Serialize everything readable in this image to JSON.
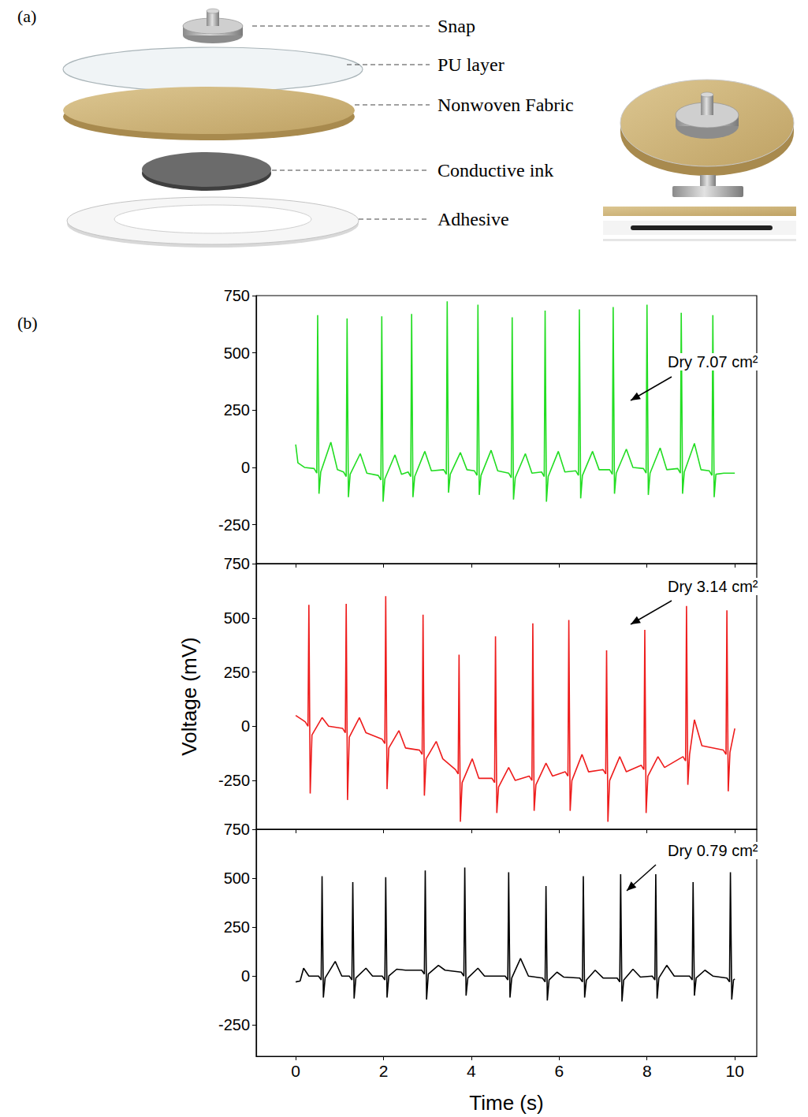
{
  "panels": {
    "a": {
      "label": "(a)",
      "layers": [
        "Snap",
        "PU layer",
        "Nonwoven Fabric",
        "Conductive ink",
        "Adhesive"
      ]
    },
    "b": {
      "label": "(b)"
    }
  },
  "chart_data": [
    {
      "type": "line",
      "annotation": "Dry 7.07 cm²",
      "color": "#22dd22",
      "grid": false,
      "tick_labels": "y",
      "xlim": [
        -0.9,
        10.5
      ],
      "xticks": [
        0,
        2,
        4,
        6,
        8,
        10
      ],
      "ylim": [
        -420,
        750
      ],
      "yticks": [
        -250,
        0,
        250,
        500,
        750
      ],
      "x": [
        0,
        0.05,
        0.2,
        0.42,
        0.48,
        0.5,
        0.53,
        0.57,
        0.8,
        0.95,
        1.09,
        1.15,
        1.17,
        1.2,
        1.24,
        1.47,
        1.62,
        1.88,
        1.94,
        1.96,
        1.99,
        2.03,
        2.26,
        2.41,
        2.56,
        2.62,
        2.64,
        2.67,
        2.71,
        2.94,
        3.09,
        3.37,
        3.43,
        3.45,
        3.48,
        3.52,
        3.75,
        3.9,
        4.07,
        4.13,
        4.15,
        4.18,
        4.22,
        4.45,
        4.6,
        4.85,
        4.91,
        4.93,
        4.96,
        5.0,
        5.23,
        5.38,
        5.6,
        5.66,
        5.68,
        5.71,
        5.75,
        5.98,
        6.13,
        6.38,
        6.44,
        6.46,
        6.49,
        6.53,
        6.76,
        6.91,
        7.15,
        7.21,
        7.23,
        7.26,
        7.3,
        7.53,
        7.68,
        7.92,
        7.98,
        8.0,
        8.03,
        8.07,
        8.3,
        8.45,
        8.7,
        8.76,
        8.78,
        8.81,
        8.85,
        9.08,
        9.23,
        9.42,
        9.48,
        9.5,
        9.53,
        9.57,
        9.75,
        10
      ],
      "values": [
        100,
        20,
        0,
        -5,
        -25,
        665,
        -115,
        -20,
        110,
        -10,
        -20,
        -40,
        650,
        -130,
        -30,
        60,
        -25,
        -35,
        -55,
        660,
        -150,
        -50,
        55,
        -30,
        -20,
        -40,
        670,
        -130,
        -40,
        70,
        -15,
        -10,
        -30,
        725,
        -110,
        -30,
        65,
        -10,
        -15,
        -35,
        710,
        -120,
        -35,
        75,
        -15,
        -25,
        -45,
        655,
        -140,
        -45,
        60,
        -25,
        -20,
        -40,
        685,
        -150,
        -40,
        70,
        -20,
        -15,
        -35,
        690,
        -135,
        -35,
        70,
        -10,
        -10,
        -30,
        700,
        -115,
        -25,
        80,
        0,
        -5,
        -25,
        710,
        -120,
        -25,
        85,
        -10,
        -5,
        -25,
        675,
        -115,
        -20,
        105,
        -10,
        -15,
        -35,
        665,
        -130,
        -30,
        -25,
        -25
      ]
    },
    {
      "type": "line",
      "annotation": "Dry 3.14 cm²",
      "color": "#ee1c1c",
      "grid": false,
      "tick_labels": "y",
      "ylabel": "Voltage (mV)",
      "xlim": [
        -0.9,
        10.5
      ],
      "xticks": [
        0,
        2,
        4,
        6,
        8,
        10
      ],
      "ylim": [
        -475,
        750
      ],
      "yticks": [
        -250,
        0,
        250,
        500,
        750
      ],
      "x": [
        0,
        0.15,
        0.22,
        0.28,
        0.3,
        0.33,
        0.37,
        0.6,
        0.75,
        1.07,
        1.13,
        1.15,
        1.18,
        1.22,
        1.45,
        1.6,
        1.97,
        2.03,
        2.05,
        2.08,
        2.12,
        2.35,
        2.5,
        2.82,
        2.88,
        2.9,
        2.93,
        2.97,
        3.2,
        3.35,
        3.64,
        3.7,
        3.72,
        3.75,
        3.79,
        4.02,
        4.17,
        4.47,
        4.53,
        4.55,
        4.58,
        4.62,
        4.85,
        5.0,
        5.32,
        5.38,
        5.4,
        5.43,
        5.47,
        5.7,
        5.85,
        6.14,
        6.2,
        6.22,
        6.25,
        6.29,
        6.52,
        6.67,
        7.0,
        7.06,
        7.08,
        7.11,
        7.15,
        7.38,
        7.53,
        7.87,
        7.93,
        7.95,
        7.98,
        8.02,
        8.25,
        8.4,
        8.82,
        8.88,
        8.9,
        8.93,
        8.97,
        9.08,
        9.25,
        9.74,
        9.8,
        9.82,
        9.85,
        9.89,
        10
      ],
      "values": [
        50,
        30,
        20,
        0,
        560,
        -310,
        -40,
        40,
        0,
        -10,
        -30,
        565,
        -340,
        -50,
        40,
        -30,
        -60,
        -80,
        600,
        -290,
        -100,
        -20,
        -100,
        -110,
        -130,
        515,
        -320,
        -150,
        -70,
        -150,
        -200,
        -220,
        330,
        -440,
        -260,
        -150,
        -240,
        -240,
        -260,
        415,
        -400,
        -280,
        -190,
        -250,
        -230,
        -250,
        475,
        -390,
        -270,
        -170,
        -230,
        -210,
        -230,
        490,
        -390,
        -250,
        -130,
        -210,
        -200,
        -220,
        350,
        -440,
        -250,
        -140,
        -210,
        -180,
        -200,
        445,
        -400,
        -230,
        -140,
        -190,
        -140,
        -160,
        555,
        -270,
        -130,
        30,
        -90,
        -110,
        -130,
        535,
        -300,
        -120,
        -10
      ]
    },
    {
      "type": "line",
      "annotation": "Dry 0.79 cm²",
      "color": "#000000",
      "grid": false,
      "xlabel": "Time (s)",
      "xlim": [
        -0.9,
        10.5
      ],
      "xticks": [
        0,
        2,
        4,
        6,
        8,
        10
      ],
      "ylim": [
        -410,
        750
      ],
      "yticks": [
        -250,
        0,
        250,
        500,
        750
      ],
      "x": [
        0,
        0.1,
        0.18,
        0.3,
        0.52,
        0.58,
        0.6,
        0.63,
        0.67,
        0.9,
        1.05,
        1.22,
        1.28,
        1.3,
        1.33,
        1.37,
        1.6,
        1.75,
        1.97,
        2.03,
        2.05,
        2.08,
        2.12,
        2.3,
        2.5,
        2.87,
        2.93,
        2.95,
        2.98,
        3.02,
        3.25,
        3.4,
        3.77,
        3.83,
        3.85,
        3.88,
        3.92,
        4.15,
        4.3,
        4.77,
        4.83,
        4.85,
        4.88,
        4.92,
        5.12,
        5.3,
        5.62,
        5.68,
        5.7,
        5.73,
        5.77,
        5.95,
        6.1,
        6.47,
        6.53,
        6.55,
        6.58,
        6.62,
        6.82,
        7.0,
        7.32,
        7.38,
        7.4,
        7.43,
        7.47,
        7.68,
        7.85,
        8.12,
        8.18,
        8.2,
        8.23,
        8.27,
        8.45,
        8.62,
        8.97,
        9.03,
        9.05,
        9.08,
        9.12,
        9.32,
        9.5,
        9.82,
        9.88,
        9.9,
        9.93,
        9.97,
        10
      ],
      "values": [
        -30,
        -25,
        40,
        0,
        0,
        -20,
        510,
        -110,
        -10,
        75,
        0,
        0,
        -20,
        480,
        -115,
        -10,
        40,
        0,
        0,
        -20,
        505,
        -110,
        0,
        35,
        30,
        30,
        10,
        540,
        -120,
        10,
        55,
        30,
        20,
        0,
        555,
        -100,
        -10,
        40,
        0,
        0,
        -20,
        530,
        -110,
        -10,
        90,
        0,
        -10,
        -30,
        460,
        -125,
        -20,
        20,
        -5,
        -10,
        -30,
        510,
        -110,
        -20,
        30,
        -10,
        -10,
        -30,
        520,
        -130,
        -20,
        35,
        -5,
        0,
        -20,
        520,
        -115,
        -10,
        55,
        0,
        0,
        -20,
        480,
        -100,
        -10,
        30,
        0,
        -10,
        -30,
        530,
        -120,
        -20,
        -15
      ]
    }
  ]
}
